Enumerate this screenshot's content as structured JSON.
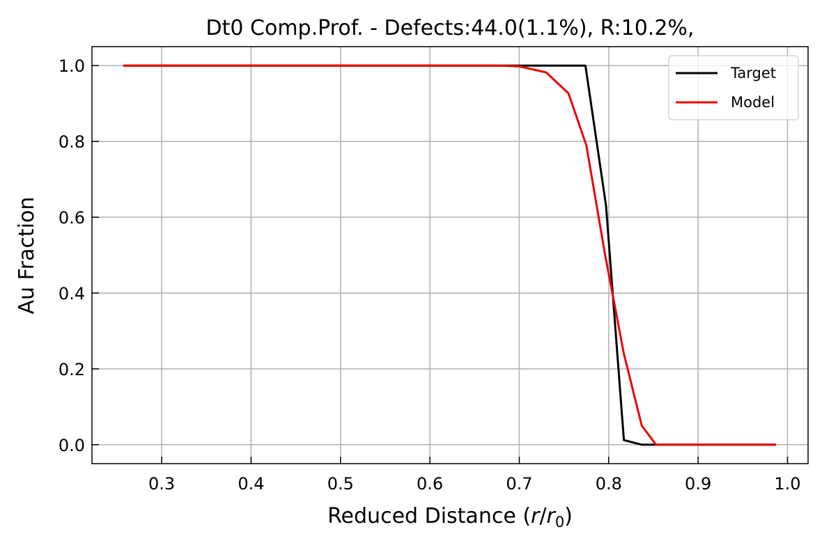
{
  "chart_data": {
    "type": "line",
    "title": "Dt0 Comp.Prof. - Defects:44.0(1.1%), R:10.2%,",
    "xlabel_prefix": "Reduced Distance (",
    "xlabel_var1": "r",
    "xlabel_slash": "/",
    "xlabel_var2": "r",
    "xlabel_sub": "0",
    "xlabel_suffix": ")",
    "ylabel": "Au Fraction",
    "xlim": [
      0.222,
      1.023
    ],
    "ylim": [
      -0.05,
      1.05
    ],
    "x_ticks": [
      0.3,
      0.4,
      0.5,
      0.6,
      0.7,
      0.8,
      0.9,
      1.0
    ],
    "x_tick_labels": [
      "0.3",
      "0.4",
      "0.5",
      "0.6",
      "0.7",
      "0.8",
      "0.9",
      "1.0"
    ],
    "y_ticks": [
      0.0,
      0.2,
      0.4,
      0.6,
      0.8,
      1.0
    ],
    "y_tick_labels": [
      "0.0",
      "0.2",
      "0.4",
      "0.6",
      "0.8",
      "1.0"
    ],
    "grid": true,
    "legend_position": "top-right",
    "series": [
      {
        "name": "Target",
        "color": "#000000",
        "points": [
          [
            0.257,
            1.0
          ],
          [
            0.7,
            1.0
          ],
          [
            0.774,
            1.0
          ],
          [
            0.797,
            0.63
          ],
          [
            0.817,
            0.012
          ],
          [
            0.837,
            0.0
          ],
          [
            0.855,
            0.0
          ],
          [
            0.987,
            0.0
          ]
        ]
      },
      {
        "name": "Model",
        "color": "#ee0000",
        "points": [
          [
            0.257,
            1.0
          ],
          [
            0.675,
            1.0
          ],
          [
            0.7,
            0.998
          ],
          [
            0.73,
            0.982
          ],
          [
            0.755,
            0.927
          ],
          [
            0.775,
            0.79
          ],
          [
            0.796,
            0.5
          ],
          [
            0.817,
            0.24
          ],
          [
            0.837,
            0.05
          ],
          [
            0.853,
            0.0
          ],
          [
            0.987,
            0.0
          ]
        ]
      }
    ]
  }
}
